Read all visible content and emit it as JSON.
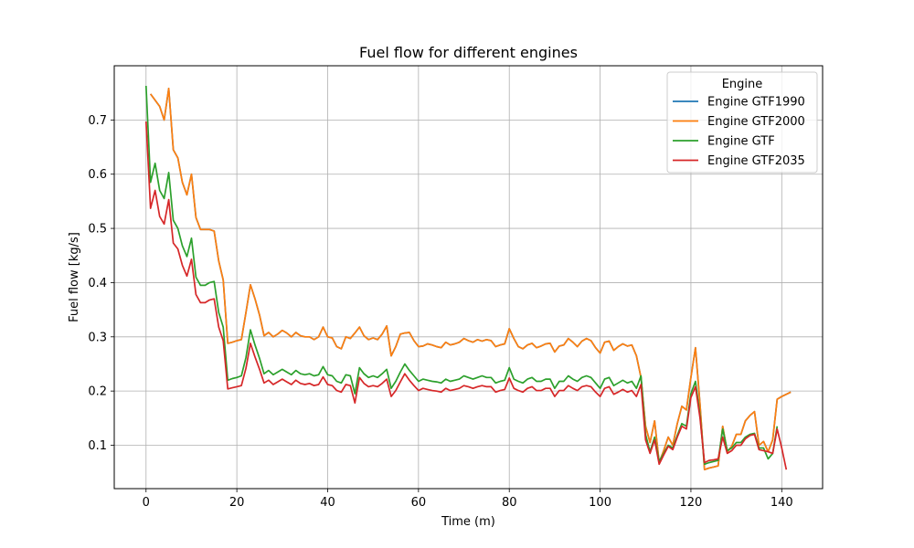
{
  "chart_data": {
    "type": "line",
    "title": "Fuel flow for different engines",
    "xlabel": "Time (m)",
    "ylabel": "Fuel flow [kg/s]",
    "xlim": [
      -7,
      149
    ],
    "ylim": [
      0.02,
      0.8
    ],
    "xticks": [
      0,
      20,
      40,
      60,
      80,
      100,
      120,
      140
    ],
    "yticks": [
      0.1,
      0.2,
      0.3,
      0.4,
      0.5,
      0.6,
      0.7
    ],
    "xtick_labels": [
      "0",
      "20",
      "40",
      "60",
      "80",
      "100",
      "120",
      "140"
    ],
    "ytick_labels": [
      "0.1",
      "0.2",
      "0.3",
      "0.4",
      "0.5",
      "0.6",
      "0.7"
    ],
    "grid": true,
    "legend": {
      "title": "Engine",
      "placement": "top-right"
    },
    "series": [
      {
        "name": "Engine GTF1990",
        "color": "#1f77b4",
        "x": [
          1,
          3,
          4,
          5,
          6,
          7,
          8,
          9,
          10,
          11,
          12,
          13,
          14,
          15,
          16,
          17,
          18,
          19,
          20,
          21,
          22,
          23,
          24,
          25,
          26,
          27,
          28,
          29,
          30,
          31,
          32,
          33,
          34,
          35,
          36,
          37,
          38,
          39,
          40,
          41,
          42,
          43,
          44,
          45,
          46,
          47,
          48,
          49,
          50,
          51,
          52,
          53,
          54,
          55,
          56,
          57,
          58,
          59,
          60,
          61,
          62,
          63,
          64,
          65,
          66,
          67,
          68,
          69,
          70,
          71,
          72,
          73,
          74,
          75,
          76,
          77,
          78,
          79,
          80,
          81,
          82,
          83,
          84,
          85,
          86,
          87,
          88,
          89,
          90,
          91,
          92,
          93,
          94,
          95,
          96,
          97,
          98,
          99,
          100,
          101,
          102,
          103,
          104,
          105,
          106,
          107,
          108,
          109,
          110,
          111,
          112,
          113,
          114,
          115,
          116,
          117,
          118,
          119,
          120,
          121,
          122,
          123,
          124,
          125,
          126,
          127,
          128,
          129,
          130,
          131,
          132,
          133,
          134,
          135,
          136,
          137,
          138,
          139,
          140,
          142
        ],
        "y": [
          0.748,
          0.725,
          0.7,
          0.758,
          0.645,
          0.63,
          0.585,
          0.562,
          0.6,
          0.52,
          0.498,
          0.498,
          0.498,
          0.495,
          0.44,
          0.405,
          0.288,
          0.29,
          0.293,
          0.295,
          0.345,
          0.396,
          0.37,
          0.34,
          0.302,
          0.308,
          0.3,
          0.305,
          0.312,
          0.307,
          0.3,
          0.308,
          0.302,
          0.3,
          0.3,
          0.295,
          0.3,
          0.318,
          0.3,
          0.298,
          0.282,
          0.278,
          0.3,
          0.297,
          0.307,
          0.318,
          0.302,
          0.295,
          0.298,
          0.295,
          0.305,
          0.32,
          0.265,
          0.282,
          0.305,
          0.307,
          0.308,
          0.293,
          0.282,
          0.283,
          0.287,
          0.285,
          0.282,
          0.28,
          0.29,
          0.285,
          0.287,
          0.29,
          0.297,
          0.293,
          0.29,
          0.295,
          0.292,
          0.295,
          0.293,
          0.282,
          0.285,
          0.287,
          0.315,
          0.297,
          0.282,
          0.278,
          0.285,
          0.288,
          0.28,
          0.283,
          0.287,
          0.288,
          0.272,
          0.283,
          0.285,
          0.297,
          0.29,
          0.282,
          0.292,
          0.297,
          0.293,
          0.28,
          0.27,
          0.29,
          0.292,
          0.275,
          0.282,
          0.287,
          0.283,
          0.285,
          0.265,
          0.225,
          0.135,
          0.105,
          0.145,
          0.068,
          0.09,
          0.115,
          0.1,
          0.14,
          0.172,
          0.165,
          0.225,
          0.28,
          0.175,
          0.055,
          0.058,
          0.06,
          0.062,
          0.135,
          0.088,
          0.098,
          0.12,
          0.12,
          0.145,
          0.155,
          0.162,
          0.1,
          0.107,
          0.088,
          0.11,
          0.185,
          0.19,
          0.198
        ]
      },
      {
        "name": "Engine GTF2000",
        "color": "#ff7f0e",
        "x": [
          1,
          3,
          4,
          5,
          6,
          7,
          8,
          9,
          10,
          11,
          12,
          13,
          14,
          15,
          16,
          17,
          18,
          19,
          20,
          21,
          22,
          23,
          24,
          25,
          26,
          27,
          28,
          29,
          30,
          31,
          32,
          33,
          34,
          35,
          36,
          37,
          38,
          39,
          40,
          41,
          42,
          43,
          44,
          45,
          46,
          47,
          48,
          49,
          50,
          51,
          52,
          53,
          54,
          55,
          56,
          57,
          58,
          59,
          60,
          61,
          62,
          63,
          64,
          65,
          66,
          67,
          68,
          69,
          70,
          71,
          72,
          73,
          74,
          75,
          76,
          77,
          78,
          79,
          80,
          81,
          82,
          83,
          84,
          85,
          86,
          87,
          88,
          89,
          90,
          91,
          92,
          93,
          94,
          95,
          96,
          97,
          98,
          99,
          100,
          101,
          102,
          103,
          104,
          105,
          106,
          107,
          108,
          109,
          110,
          111,
          112,
          113,
          114,
          115,
          116,
          117,
          118,
          119,
          120,
          121,
          122,
          123,
          124,
          125,
          126,
          127,
          128,
          129,
          130,
          131,
          132,
          133,
          134,
          135,
          136,
          137,
          138,
          139,
          140,
          142
        ],
        "y": [
          0.748,
          0.725,
          0.7,
          0.758,
          0.645,
          0.63,
          0.585,
          0.562,
          0.6,
          0.52,
          0.498,
          0.498,
          0.498,
          0.495,
          0.44,
          0.405,
          0.288,
          0.29,
          0.293,
          0.295,
          0.345,
          0.396,
          0.37,
          0.34,
          0.302,
          0.308,
          0.3,
          0.305,
          0.312,
          0.307,
          0.3,
          0.308,
          0.302,
          0.3,
          0.3,
          0.295,
          0.3,
          0.318,
          0.3,
          0.298,
          0.282,
          0.278,
          0.3,
          0.297,
          0.307,
          0.318,
          0.302,
          0.295,
          0.298,
          0.295,
          0.305,
          0.32,
          0.265,
          0.282,
          0.305,
          0.307,
          0.308,
          0.293,
          0.282,
          0.283,
          0.287,
          0.285,
          0.282,
          0.28,
          0.29,
          0.285,
          0.287,
          0.29,
          0.297,
          0.293,
          0.29,
          0.295,
          0.292,
          0.295,
          0.293,
          0.282,
          0.285,
          0.287,
          0.315,
          0.297,
          0.282,
          0.278,
          0.285,
          0.288,
          0.28,
          0.283,
          0.287,
          0.288,
          0.272,
          0.283,
          0.285,
          0.297,
          0.29,
          0.282,
          0.292,
          0.297,
          0.293,
          0.28,
          0.27,
          0.29,
          0.292,
          0.275,
          0.282,
          0.287,
          0.283,
          0.285,
          0.265,
          0.225,
          0.135,
          0.105,
          0.145,
          0.068,
          0.09,
          0.115,
          0.1,
          0.14,
          0.172,
          0.165,
          0.225,
          0.28,
          0.175,
          0.055,
          0.058,
          0.06,
          0.062,
          0.135,
          0.088,
          0.098,
          0.12,
          0.12,
          0.145,
          0.155,
          0.162,
          0.1,
          0.107,
          0.088,
          0.11,
          0.185,
          0.19,
          0.198
        ]
      },
      {
        "name": "Engine GTF",
        "color": "#2ca02c",
        "x": [
          0,
          1,
          2,
          3,
          4,
          5,
          6,
          7,
          8,
          9,
          10,
          11,
          12,
          13,
          14,
          15,
          16,
          17,
          18,
          19,
          20,
          21,
          22,
          23,
          24,
          25,
          26,
          27,
          28,
          29,
          30,
          31,
          32,
          33,
          34,
          35,
          36,
          37,
          38,
          39,
          40,
          41,
          42,
          43,
          44,
          45,
          46,
          47,
          48,
          49,
          50,
          51,
          52,
          53,
          54,
          55,
          56,
          57,
          58,
          59,
          60,
          61,
          62,
          63,
          64,
          65,
          66,
          67,
          68,
          69,
          70,
          71,
          72,
          73,
          74,
          75,
          76,
          77,
          78,
          79,
          80,
          81,
          82,
          83,
          84,
          85,
          86,
          87,
          88,
          89,
          90,
          91,
          92,
          93,
          94,
          95,
          96,
          97,
          98,
          99,
          100,
          101,
          102,
          103,
          104,
          105,
          106,
          107,
          108,
          109,
          110,
          111,
          112,
          113,
          114,
          115,
          116,
          117,
          118,
          119,
          120,
          121,
          122,
          123,
          124,
          125,
          126,
          127,
          128,
          129,
          130,
          131,
          132,
          133,
          134,
          135,
          136,
          137,
          138,
          139
        ],
        "y": [
          0.763,
          0.585,
          0.62,
          0.57,
          0.555,
          0.603,
          0.515,
          0.5,
          0.468,
          0.448,
          0.482,
          0.41,
          0.395,
          0.395,
          0.4,
          0.402,
          0.345,
          0.318,
          0.22,
          0.223,
          0.225,
          0.228,
          0.262,
          0.313,
          0.285,
          0.26,
          0.232,
          0.238,
          0.23,
          0.235,
          0.24,
          0.235,
          0.23,
          0.238,
          0.232,
          0.23,
          0.232,
          0.228,
          0.23,
          0.245,
          0.23,
          0.228,
          0.218,
          0.215,
          0.23,
          0.228,
          0.195,
          0.243,
          0.232,
          0.225,
          0.228,
          0.225,
          0.232,
          0.24,
          0.205,
          0.218,
          0.235,
          0.25,
          0.238,
          0.228,
          0.218,
          0.222,
          0.22,
          0.218,
          0.217,
          0.215,
          0.222,
          0.218,
          0.22,
          0.222,
          0.228,
          0.225,
          0.222,
          0.225,
          0.228,
          0.225,
          0.225,
          0.215,
          0.218,
          0.22,
          0.243,
          0.222,
          0.218,
          0.215,
          0.222,
          0.225,
          0.218,
          0.218,
          0.222,
          0.222,
          0.205,
          0.218,
          0.218,
          0.228,
          0.222,
          0.218,
          0.225,
          0.228,
          0.225,
          0.215,
          0.205,
          0.222,
          0.225,
          0.21,
          0.215,
          0.22,
          0.215,
          0.218,
          0.205,
          0.228,
          0.12,
          0.088,
          0.115,
          0.07,
          0.085,
          0.1,
          0.095,
          0.118,
          0.14,
          0.135,
          0.195,
          0.218,
          0.155,
          0.065,
          0.068,
          0.07,
          0.072,
          0.13,
          0.09,
          0.095,
          0.105,
          0.105,
          0.115,
          0.12,
          0.122,
          0.095,
          0.095,
          0.075,
          0.085,
          0.135
        ]
      },
      {
        "name": "Engine GTF2035",
        "color": "#d62728",
        "x": [
          0,
          1,
          2,
          3,
          4,
          5,
          6,
          7,
          8,
          9,
          10,
          11,
          12,
          13,
          14,
          15,
          16,
          17,
          18,
          19,
          20,
          21,
          22,
          23,
          24,
          25,
          26,
          27,
          28,
          29,
          30,
          31,
          32,
          33,
          34,
          35,
          36,
          37,
          38,
          39,
          40,
          41,
          42,
          43,
          44,
          45,
          46,
          47,
          48,
          49,
          50,
          51,
          52,
          53,
          54,
          55,
          56,
          57,
          58,
          59,
          60,
          61,
          62,
          63,
          64,
          65,
          66,
          67,
          68,
          69,
          70,
          71,
          72,
          73,
          74,
          75,
          76,
          77,
          78,
          79,
          80,
          81,
          82,
          83,
          84,
          85,
          86,
          87,
          88,
          89,
          90,
          91,
          92,
          93,
          94,
          95,
          96,
          97,
          98,
          99,
          100,
          101,
          102,
          103,
          104,
          105,
          106,
          107,
          108,
          109,
          110,
          111,
          112,
          113,
          114,
          115,
          116,
          117,
          118,
          119,
          120,
          121,
          122,
          123,
          124,
          125,
          126,
          127,
          128,
          129,
          130,
          131,
          132,
          133,
          134,
          135,
          136,
          137,
          138,
          139,
          140,
          141
        ],
        "y": [
          0.697,
          0.537,
          0.57,
          0.522,
          0.508,
          0.553,
          0.473,
          0.462,
          0.432,
          0.412,
          0.443,
          0.378,
          0.363,
          0.363,
          0.368,
          0.37,
          0.318,
          0.293,
          0.204,
          0.206,
          0.208,
          0.21,
          0.242,
          0.288,
          0.263,
          0.24,
          0.215,
          0.22,
          0.212,
          0.217,
          0.222,
          0.217,
          0.212,
          0.22,
          0.214,
          0.212,
          0.214,
          0.21,
          0.212,
          0.226,
          0.212,
          0.21,
          0.201,
          0.198,
          0.212,
          0.21,
          0.178,
          0.225,
          0.214,
          0.208,
          0.21,
          0.208,
          0.214,
          0.222,
          0.19,
          0.201,
          0.217,
          0.232,
          0.22,
          0.21,
          0.201,
          0.205,
          0.203,
          0.201,
          0.2,
          0.198,
          0.205,
          0.201,
          0.203,
          0.205,
          0.21,
          0.208,
          0.205,
          0.208,
          0.21,
          0.208,
          0.208,
          0.198,
          0.201,
          0.203,
          0.224,
          0.205,
          0.201,
          0.198,
          0.205,
          0.208,
          0.201,
          0.201,
          0.205,
          0.205,
          0.19,
          0.201,
          0.201,
          0.21,
          0.205,
          0.201,
          0.208,
          0.21,
          0.208,
          0.198,
          0.19,
          0.205,
          0.208,
          0.194,
          0.198,
          0.203,
          0.198,
          0.201,
          0.19,
          0.212,
          0.11,
          0.085,
          0.11,
          0.065,
          0.082,
          0.098,
          0.092,
          0.115,
          0.135,
          0.13,
          0.188,
          0.208,
          0.15,
          0.068,
          0.072,
          0.073,
          0.075,
          0.115,
          0.085,
          0.09,
          0.1,
          0.1,
          0.112,
          0.118,
          0.12,
          0.092,
          0.09,
          0.088,
          0.085,
          0.13,
          0.095,
          0.055
        ]
      }
    ]
  }
}
